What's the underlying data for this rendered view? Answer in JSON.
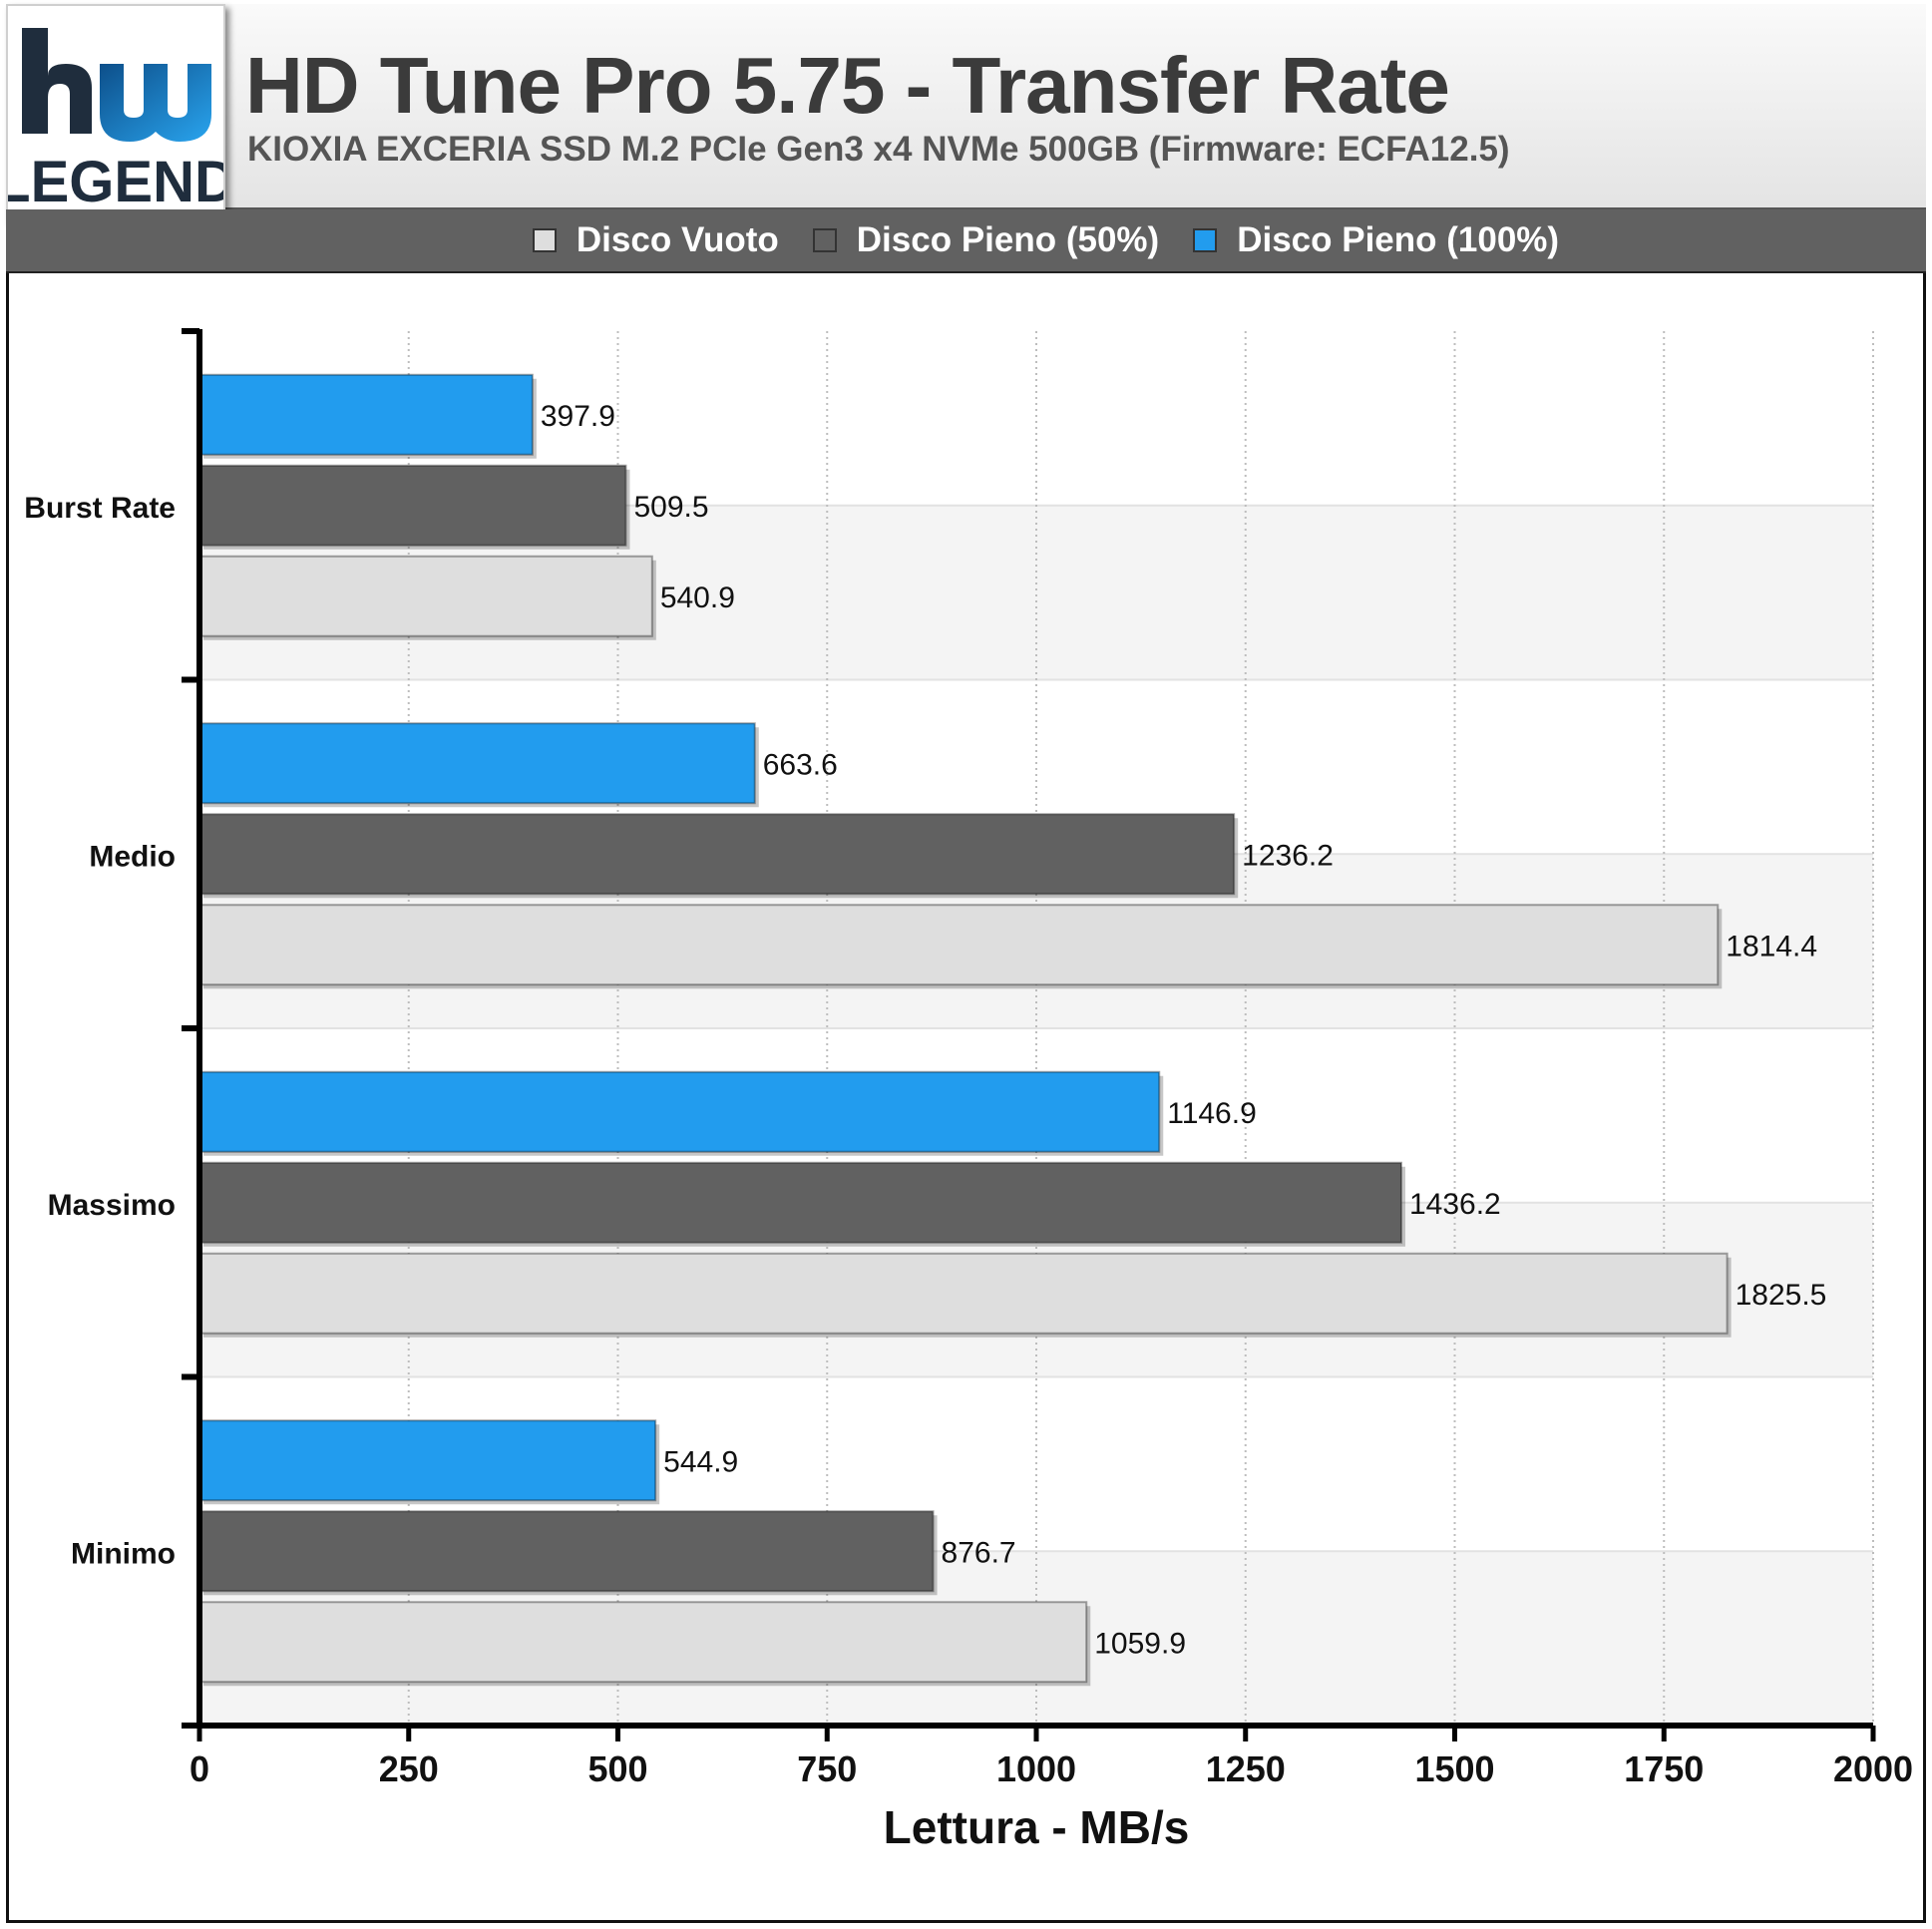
{
  "header": {
    "title": "HD Tune Pro 5.75 - Transfer Rate",
    "subtitle": "KIOXIA EXCERIA SSD M.2 PCIe Gen3 x4 NVMe 500GB (Firmware: ECFA12.5)",
    "logo_text": "LEGEND",
    "logo_mark": "hw"
  },
  "legend": [
    {
      "label": "Disco Vuoto",
      "color": "#dedede"
    },
    {
      "label": "Disco Pieno (50%)",
      "color": "#616161"
    },
    {
      "label": "Disco Pieno (100%)",
      "color": "#229cee"
    }
  ],
  "chart_data": {
    "type": "bar",
    "orientation": "horizontal",
    "categories": [
      "Burst Rate",
      "Medio",
      "Massimo",
      "Minimo"
    ],
    "series": [
      {
        "name": "Disco Pieno (100%)",
        "color": "#229cee",
        "values": [
          397.9,
          663.6,
          1146.9,
          544.9
        ]
      },
      {
        "name": "Disco Pieno (50%)",
        "color": "#616161",
        "values": [
          509.5,
          1236.2,
          1436.2,
          876.7
        ]
      },
      {
        "name": "Disco Vuoto",
        "color": "#dedede",
        "values": [
          540.9,
          1814.4,
          1825.5,
          1059.9
        ]
      }
    ],
    "xlabel": "Lettura - MB/s",
    "xlim": [
      0,
      2000
    ],
    "xticks": [
      0,
      250,
      500,
      750,
      1000,
      1250,
      1500,
      1750,
      2000
    ],
    "grid": true
  }
}
